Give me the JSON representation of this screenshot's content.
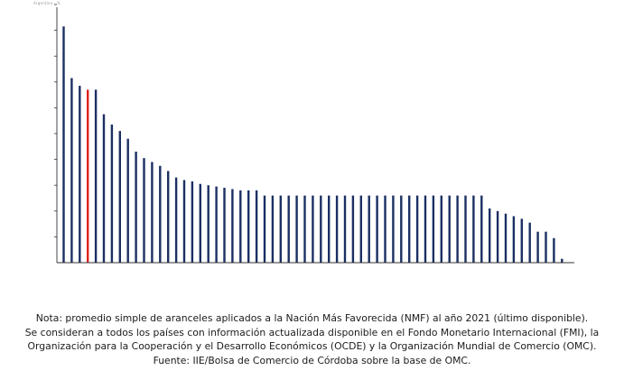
{
  "chart_data": {
    "type": "bar",
    "title": "",
    "corner_label": "Argentina - %",
    "xlabel": "",
    "ylabel": "",
    "ylim": [
      0,
      20
    ],
    "y_tick_step": 2,
    "y_tick_labels_visible": false,
    "x_tick_labels_visible": false,
    "bar_color": "#1b2f63",
    "highlight_color": "#e0221b",
    "highlight_index": 3,
    "values": [
      18.3,
      14.3,
      13.7,
      13.4,
      13.4,
      11.5,
      10.7,
      10.2,
      9.6,
      8.6,
      8.1,
      7.8,
      7.5,
      7.1,
      6.6,
      6.4,
      6.3,
      6.1,
      6.0,
      5.9,
      5.8,
      5.7,
      5.6,
      5.6,
      5.6,
      5.2,
      5.2,
      5.2,
      5.2,
      5.2,
      5.2,
      5.2,
      5.2,
      5.2,
      5.2,
      5.2,
      5.2,
      5.2,
      5.2,
      5.2,
      5.2,
      5.2,
      5.2,
      5.2,
      5.2,
      5.2,
      5.2,
      5.2,
      5.2,
      5.2,
      5.2,
      5.2,
      5.2,
      4.2,
      4.0,
      3.8,
      3.6,
      3.4,
      3.1,
      2.4,
      2.4,
      1.9,
      0.3
    ]
  },
  "note": {
    "line1": "Nota: promedio simple de aranceles aplicados a la Nación Más Favorecida (NMF) al año 2021 (último disponible).",
    "line2": "Se consideran a todos los países con información actualizada disponible en el Fondo Monetario Internacional (FMI), la",
    "line3": "Organización para la Cooperación y el Desarrollo Económicos (OCDE) y la Organización Mundial de Comercio (OMC).",
    "line4": "Fuente: IIE/Bolsa de Comercio de Córdoba sobre la base de OMC."
  }
}
